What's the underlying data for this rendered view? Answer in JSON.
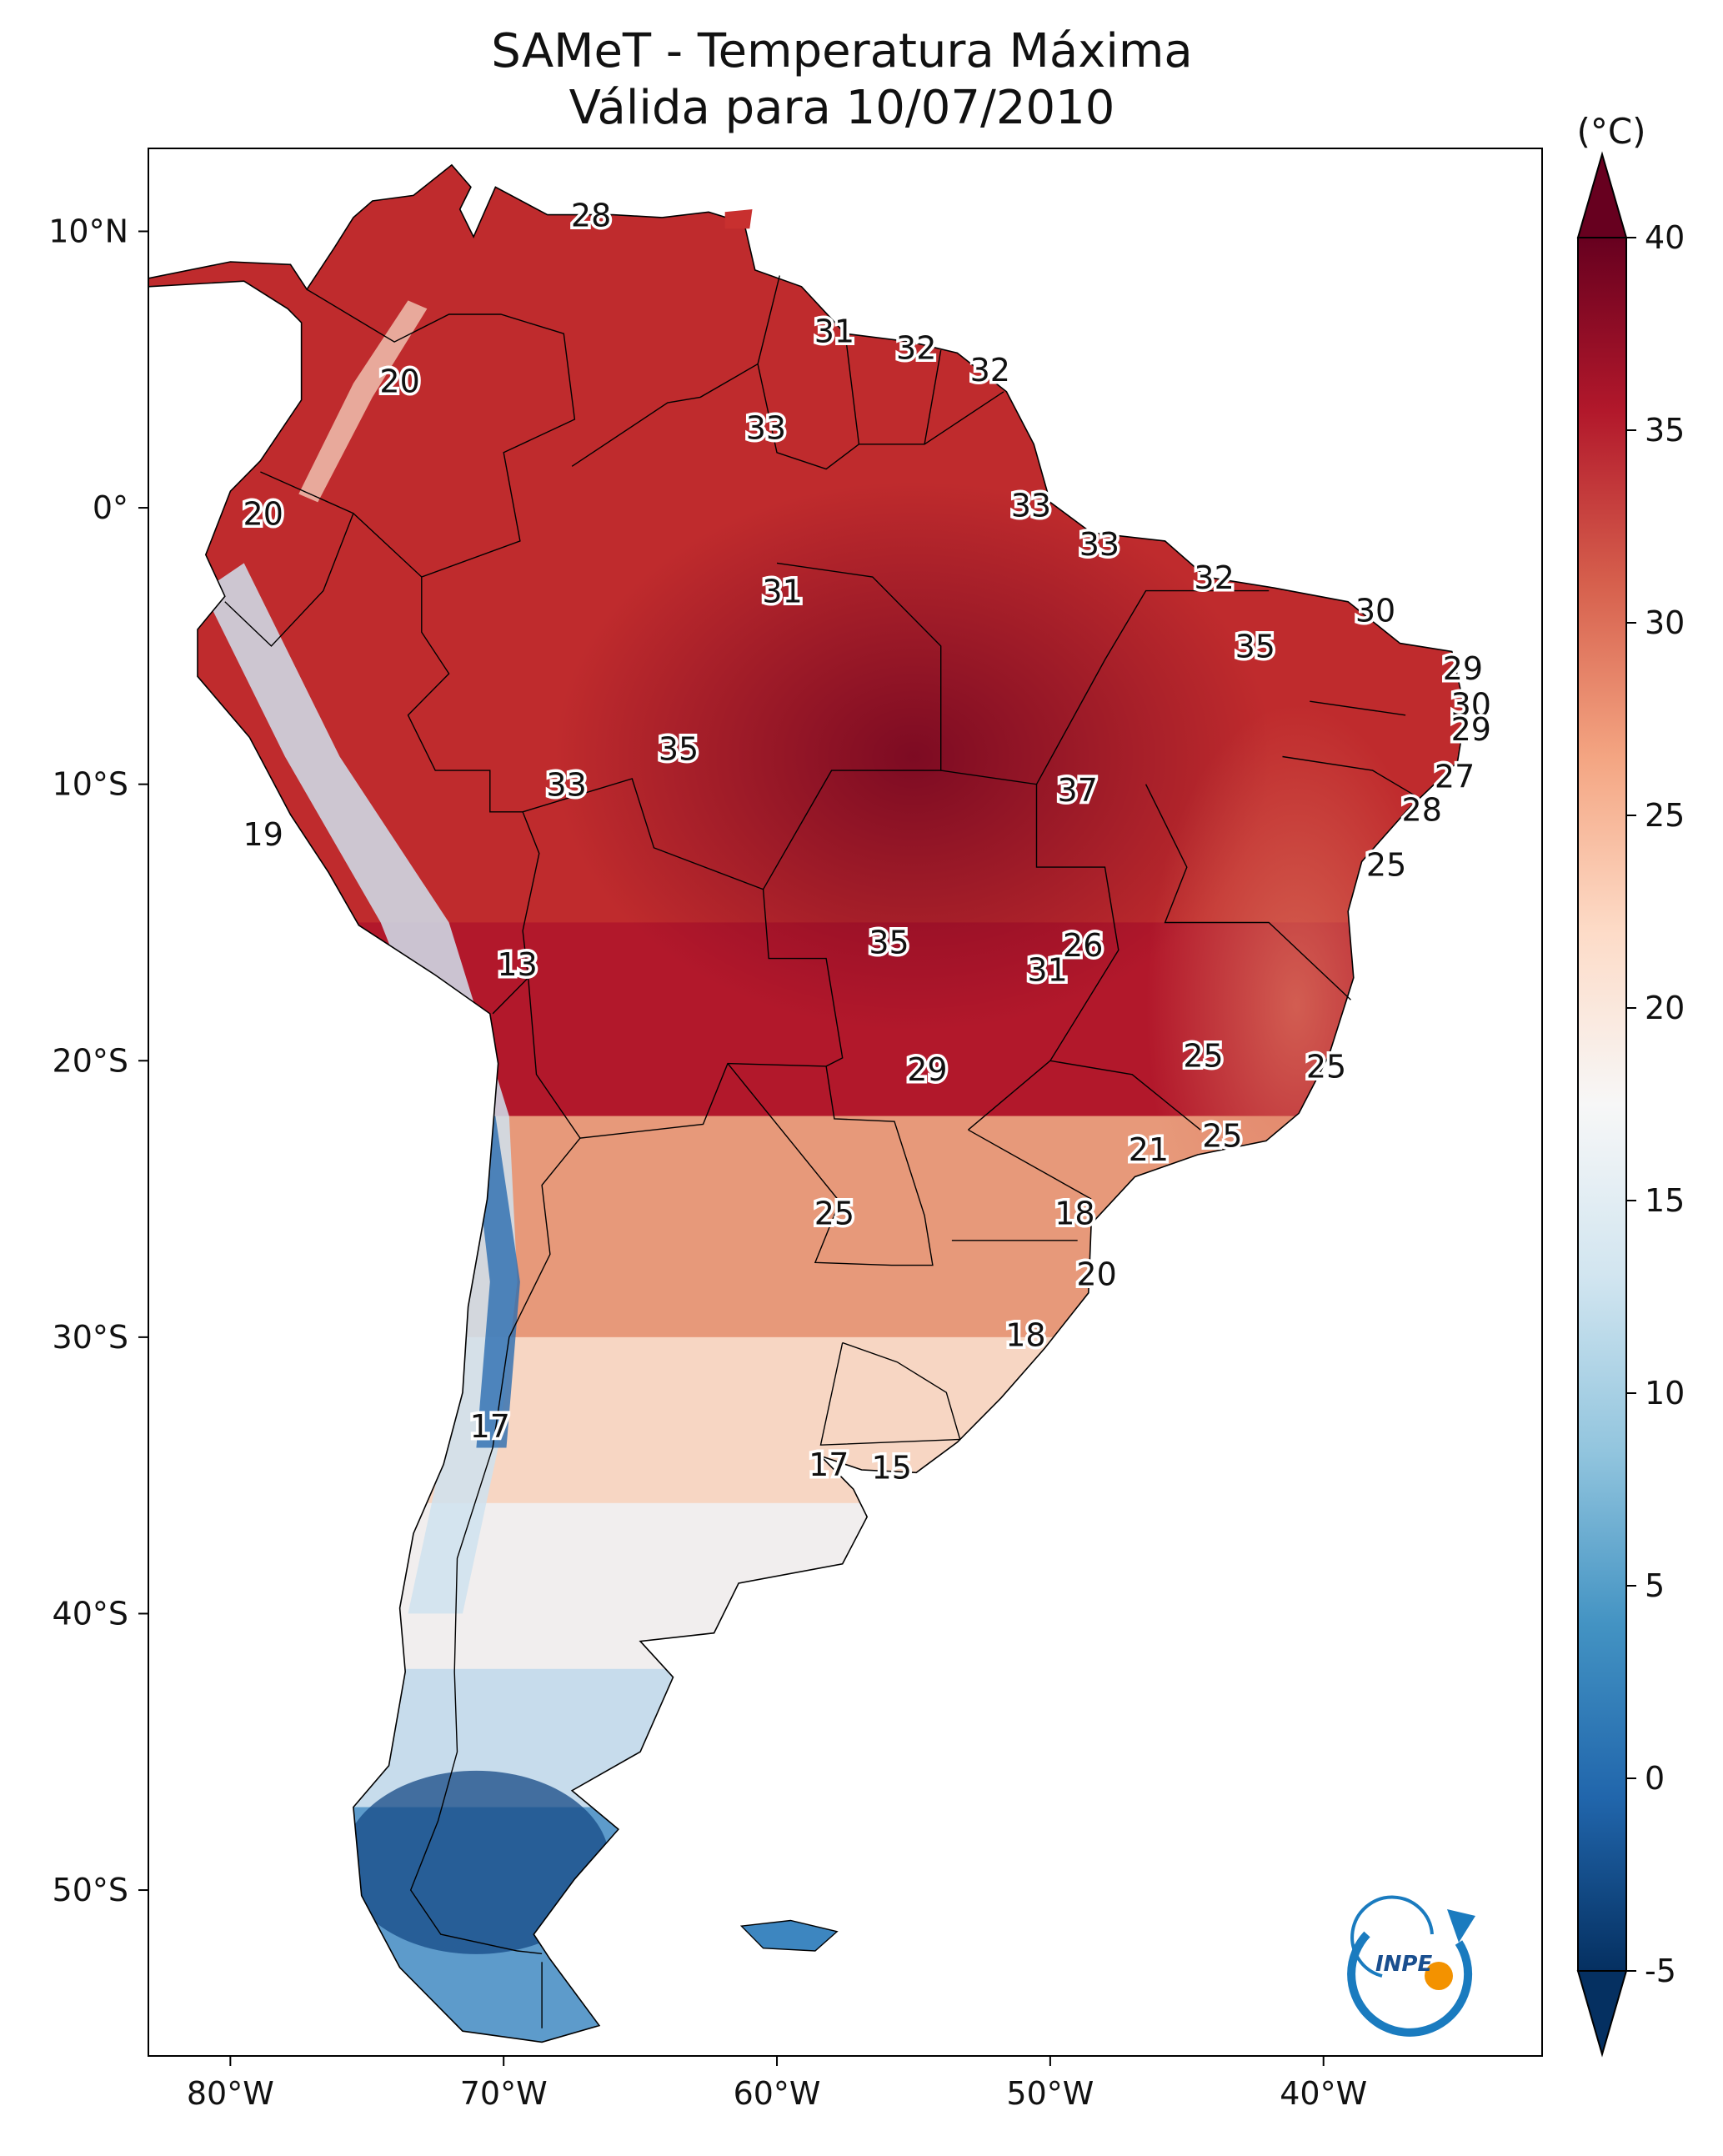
{
  "title": {
    "line1": "SAMeT - Temperatura Máxima",
    "line2": "Válida para 10/07/2010"
  },
  "axes": {
    "lon": {
      "range": [
        -83,
        -32
      ],
      "ticks": [
        {
          "v": -80,
          "label": "80°W"
        },
        {
          "v": -70,
          "label": "70°W"
        },
        {
          "v": -60,
          "label": "60°W"
        },
        {
          "v": -50,
          "label": "50°W"
        },
        {
          "v": -40,
          "label": "40°W"
        }
      ]
    },
    "lat": {
      "range": [
        -56,
        13
      ],
      "ticks": [
        {
          "v": 10,
          "label": "10°N"
        },
        {
          "v": 0,
          "label": "0°"
        },
        {
          "v": -10,
          "label": "10°S"
        },
        {
          "v": -20,
          "label": "20°S"
        },
        {
          "v": -30,
          "label": "30°S"
        },
        {
          "v": -40,
          "label": "40°S"
        },
        {
          "v": -50,
          "label": "50°S"
        }
      ]
    }
  },
  "colorbar": {
    "unit": "(°C)",
    "min": -5,
    "max": 40,
    "ticks": [
      {
        "v": 40,
        "label": "40"
      },
      {
        "v": 35,
        "label": "35"
      },
      {
        "v": 30,
        "label": "30"
      },
      {
        "v": 25,
        "label": "25"
      },
      {
        "v": 20,
        "label": "20"
      },
      {
        "v": 15,
        "label": "15"
      },
      {
        "v": 10,
        "label": "10"
      },
      {
        "v": 5,
        "label": "5"
      },
      {
        "v": 0,
        "label": "0"
      },
      {
        "v": -5,
        "label": "-5"
      }
    ],
    "colors": [
      "#053061",
      "#2166ac",
      "#4393c3",
      "#92c5de",
      "#d1e5f0",
      "#f7f7f7",
      "#fddbc7",
      "#f4a582",
      "#d6604d",
      "#b2182b",
      "#67001f"
    ]
  },
  "labels": [
    {
      "lon": -66.8,
      "lat": 10.5,
      "text": "28"
    },
    {
      "lon": -57.9,
      "lat": 6.3,
      "text": "31"
    },
    {
      "lon": -54.9,
      "lat": 5.7,
      "text": "32"
    },
    {
      "lon": -52.2,
      "lat": 4.9,
      "text": "32"
    },
    {
      "lon": -60.4,
      "lat": 2.8,
      "text": "33"
    },
    {
      "lon": -50.7,
      "lat": 0.0,
      "text": "33"
    },
    {
      "lon": -48.2,
      "lat": -1.4,
      "text": "33"
    },
    {
      "lon": -44.0,
      "lat": -2.6,
      "text": "32"
    },
    {
      "lon": -38.1,
      "lat": -3.8,
      "text": "30"
    },
    {
      "lon": -59.8,
      "lat": -3.1,
      "text": "31"
    },
    {
      "lon": -42.5,
      "lat": -5.1,
      "text": "35"
    },
    {
      "lon": -34.9,
      "lat": -5.9,
      "text": "29"
    },
    {
      "lon": -34.6,
      "lat": -7.2,
      "text": "30"
    },
    {
      "lon": -34.6,
      "lat": -8.1,
      "text": "29"
    },
    {
      "lon": -63.6,
      "lat": -8.8,
      "text": "35"
    },
    {
      "lon": -35.2,
      "lat": -9.8,
      "text": "27"
    },
    {
      "lon": -67.7,
      "lat": -10.1,
      "text": "33"
    },
    {
      "lon": -49.0,
      "lat": -10.3,
      "text": "37"
    },
    {
      "lon": -36.4,
      "lat": -11.0,
      "text": "28"
    },
    {
      "lon": -78.8,
      "lat": -11.9,
      "text": "19"
    },
    {
      "lon": -37.7,
      "lat": -13.0,
      "text": "25"
    },
    {
      "lon": -55.9,
      "lat": -15.8,
      "text": "35"
    },
    {
      "lon": -48.8,
      "lat": -15.9,
      "text": "26"
    },
    {
      "lon": -50.1,
      "lat": -16.8,
      "text": "31"
    },
    {
      "lon": -69.5,
      "lat": -16.6,
      "text": "13"
    },
    {
      "lon": -44.4,
      "lat": -19.9,
      "text": "25"
    },
    {
      "lon": -54.5,
      "lat": -20.4,
      "text": "29"
    },
    {
      "lon": -39.9,
      "lat": -20.3,
      "text": "25"
    },
    {
      "lon": -43.7,
      "lat": -22.8,
      "text": "25"
    },
    {
      "lon": -46.4,
      "lat": -23.3,
      "text": "21"
    },
    {
      "lon": -57.9,
      "lat": -25.6,
      "text": "25"
    },
    {
      "lon": -49.1,
      "lat": -25.6,
      "text": "18"
    },
    {
      "lon": -48.3,
      "lat": -27.8,
      "text": "20"
    },
    {
      "lon": -50.9,
      "lat": -30.0,
      "text": "18"
    },
    {
      "lon": -70.5,
      "lat": -33.3,
      "text": "17"
    },
    {
      "lon": -58.1,
      "lat": -34.7,
      "text": "17"
    },
    {
      "lon": -55.8,
      "lat": -34.8,
      "text": "15"
    },
    {
      "lon": -73.8,
      "lat": 4.5,
      "text": "20"
    },
    {
      "lon": -78.8,
      "lat": -0.3,
      "text": "20"
    }
  ],
  "logo": {
    "text": "INPE",
    "colors": {
      "arc": "#1a7bbf",
      "dot": "#f39200"
    }
  }
}
